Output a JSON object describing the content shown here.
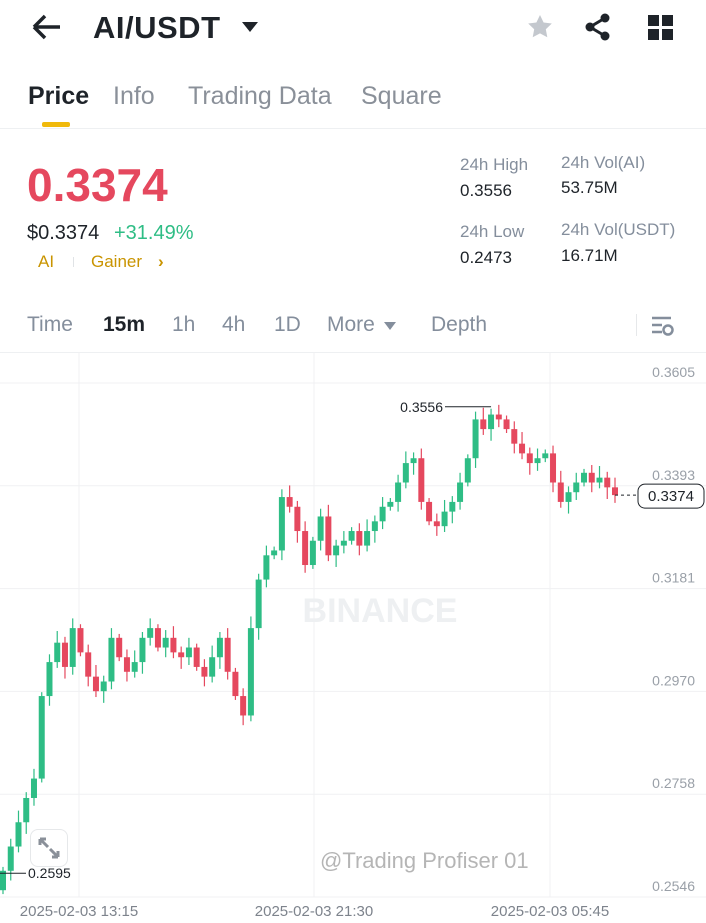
{
  "header": {
    "title": "AI/USDT",
    "back_icon": "arrow-left-icon",
    "star_icon": "star-icon",
    "share_icon": "share-icon",
    "grid_icon": "grid-icon"
  },
  "tabs": [
    {
      "label": "Price",
      "active": true
    },
    {
      "label": "Info"
    },
    {
      "label": "Trading Data"
    },
    {
      "label": "Square"
    }
  ],
  "ticker": {
    "price": "0.3374",
    "usd_price": "$0.3374",
    "change": "+31.49%",
    "tag1": "AI",
    "tag2": "Gainer",
    "tag2_chevron": "›",
    "high_label": "24h High",
    "high": "0.3556",
    "low_label": "24h Low",
    "low": "0.2473",
    "vol_ai_label": "24h Vol(AI)",
    "vol_ai": "53.75M",
    "vol_usdt_label": "24h Vol(USDT)",
    "vol_usdt": "16.71M"
  },
  "intervals": {
    "items": [
      "Time",
      "15m",
      "1h",
      "4h",
      "1D",
      "More"
    ],
    "active": "15m",
    "depth": "Depth"
  },
  "colors": {
    "up": "#2ebd85",
    "down": "#e5485e",
    "accent": "#f0b90b"
  },
  "chart_data": {
    "type": "candlestick",
    "y_ticks": [
      "0.3605",
      "0.3393",
      "0.3181",
      "0.2970",
      "0.2758",
      "0.2546"
    ],
    "ylim": [
      0.2546,
      0.3605
    ],
    "x_ticks": [
      "2025-02-03 13:15",
      "2025-02-03 21:30",
      "2025-02-03 05:45"
    ],
    "high_marker": "0.3556",
    "low_marker": "0.2595",
    "last_price": "0.3374",
    "watermark": "BINANCE",
    "closes": [
      0.26,
      0.265,
      0.27,
      0.275,
      0.279,
      0.296,
      0.303,
      0.307,
      0.302,
      0.31,
      0.305,
      0.3,
      0.297,
      0.299,
      0.308,
      0.304,
      0.301,
      0.303,
      0.308,
      0.31,
      0.306,
      0.308,
      0.305,
      0.304,
      0.306,
      0.302,
      0.3,
      0.304,
      0.308,
      0.301,
      0.296,
      0.292,
      0.31,
      0.32,
      0.325,
      0.326,
      0.337,
      0.335,
      0.33,
      0.323,
      0.328,
      0.333,
      0.325,
      0.327,
      0.328,
      0.33,
      0.327,
      0.33,
      0.332,
      0.335,
      0.336,
      0.34,
      0.344,
      0.345,
      0.336,
      0.332,
      0.331,
      0.334,
      0.336,
      0.34,
      0.345,
      0.353,
      0.351,
      0.354,
      0.353,
      0.351,
      0.348,
      0.346,
      0.344,
      0.345,
      0.346,
      0.34,
      0.336,
      0.338,
      0.34,
      0.342,
      0.34,
      0.341,
      0.339,
      0.3374
    ]
  },
  "overlay": {
    "watermark_user": "@Trading Profiser 01"
  }
}
